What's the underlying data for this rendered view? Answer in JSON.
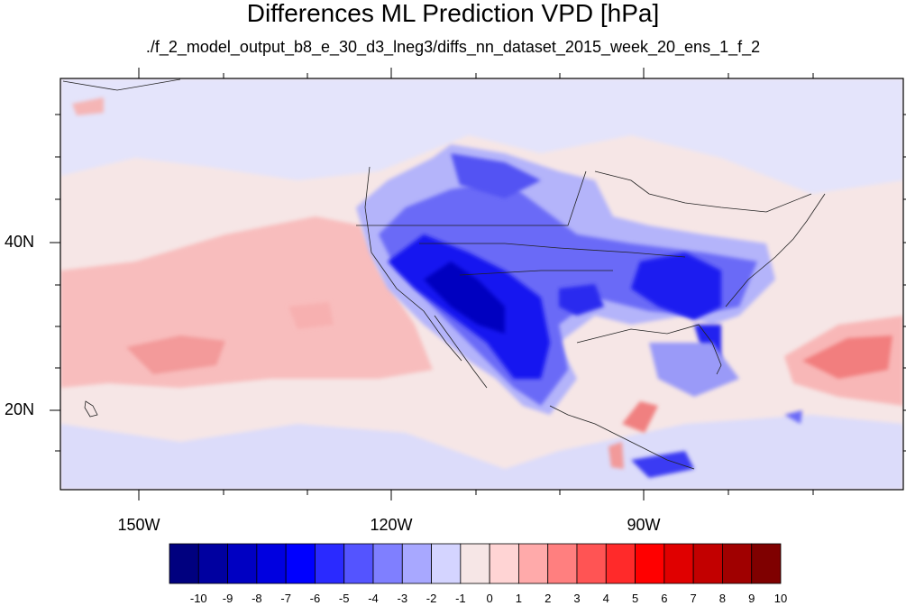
{
  "title": "Differences ML Prediction VPD [hPa]",
  "subtitle": "./f_2_model_output_b8_e_30_d3_lneg3/diffs_nn_dataset_2015_week_20_ens_1_f_2",
  "lat_labels": [
    "40N",
    "20N"
  ],
  "lon_labels": [
    "150W",
    "120W",
    "90W"
  ],
  "colorbar": {
    "ticks": [
      "-10",
      "-9",
      "-8",
      "-7",
      "-6",
      "-5",
      "-4",
      "-3",
      "-2",
      "-1",
      "0",
      "1",
      "2",
      "3",
      "4",
      "5",
      "6",
      "7",
      "8",
      "9",
      "10"
    ],
    "colors": [
      "#00007f",
      "#0000a0",
      "#0000c2",
      "#0000e0",
      "#0000ff",
      "#2a2aff",
      "#5454ff",
      "#7f7fff",
      "#a8a8ff",
      "#d4d4ff",
      "#f6e6e6",
      "#ffd4d4",
      "#ffaaaa",
      "#ff7f7f",
      "#ff5454",
      "#ff2a2a",
      "#ff0000",
      "#e00000",
      "#c20000",
      "#a00000",
      "#7f0000"
    ]
  }
}
